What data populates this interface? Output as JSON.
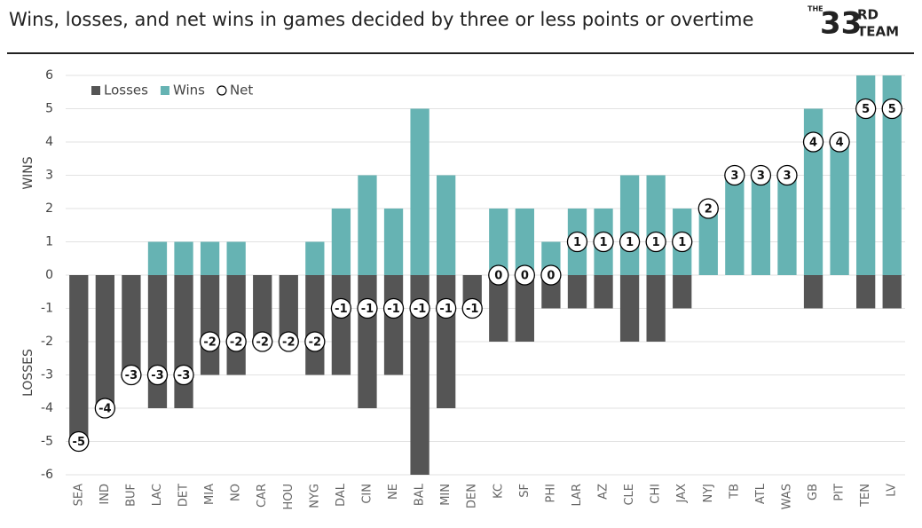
{
  "chart_data": {
    "type": "bar",
    "title": "Wins, losses, and net wins in games decided by three or less points or overtime",
    "logo": {
      "top": "THE",
      "number": "33",
      "suffix": "RD",
      "bottom": "TEAM"
    },
    "y_label_top": "WINS",
    "y_label_bottom": "LOSSES",
    "categories": [
      "SEA",
      "IND",
      "BUF",
      "LAC",
      "DET",
      "MIA",
      "NO",
      "CAR",
      "HOU",
      "NYG",
      "DAL",
      "CIN",
      "NE",
      "BAL",
      "MIN",
      "DEN",
      "KC",
      "SF",
      "PHI",
      "LAR",
      "AZ",
      "CLE",
      "CHI",
      "JAX",
      "NYJ",
      "TB",
      "ATL",
      "WAS",
      "GB",
      "PIT",
      "TEN",
      "LV"
    ],
    "series": [
      {
        "name": "Losses",
        "color": "#555555",
        "values": [
          -5,
          -4,
          -3,
          -4,
          -4,
          -3,
          -3,
          -2,
          -2,
          -3,
          -3,
          -4,
          -3,
          -6,
          -4,
          -1,
          -2,
          -2,
          -1,
          -1,
          -1,
          -2,
          -2,
          -1,
          0,
          0,
          0,
          0,
          -1,
          0,
          -1,
          -1
        ]
      },
      {
        "name": "Wins",
        "color": "#66b3b3",
        "values": [
          0,
          0,
          0,
          1,
          1,
          1,
          1,
          0,
          0,
          1,
          2,
          3,
          2,
          5,
          3,
          0,
          2,
          2,
          1,
          2,
          2,
          3,
          3,
          2,
          2,
          3,
          3,
          3,
          5,
          4,
          6,
          6
        ]
      },
      {
        "name": "Net",
        "color": "#000000",
        "values": [
          -5,
          -4,
          -3,
          -3,
          -3,
          -2,
          -2,
          -2,
          -2,
          -2,
          -1,
          -1,
          -1,
          -1,
          -1,
          -1,
          0,
          0,
          0,
          1,
          1,
          1,
          1,
          1,
          2,
          3,
          3,
          3,
          4,
          4,
          5,
          5
        ]
      }
    ],
    "ylim": [
      -6,
      6
    ],
    "yticks": [
      -6,
      -5,
      -4,
      -3,
      -2,
      -1,
      0,
      1,
      2,
      3,
      4,
      5,
      6
    ],
    "grid": true,
    "legend": "top left"
  }
}
